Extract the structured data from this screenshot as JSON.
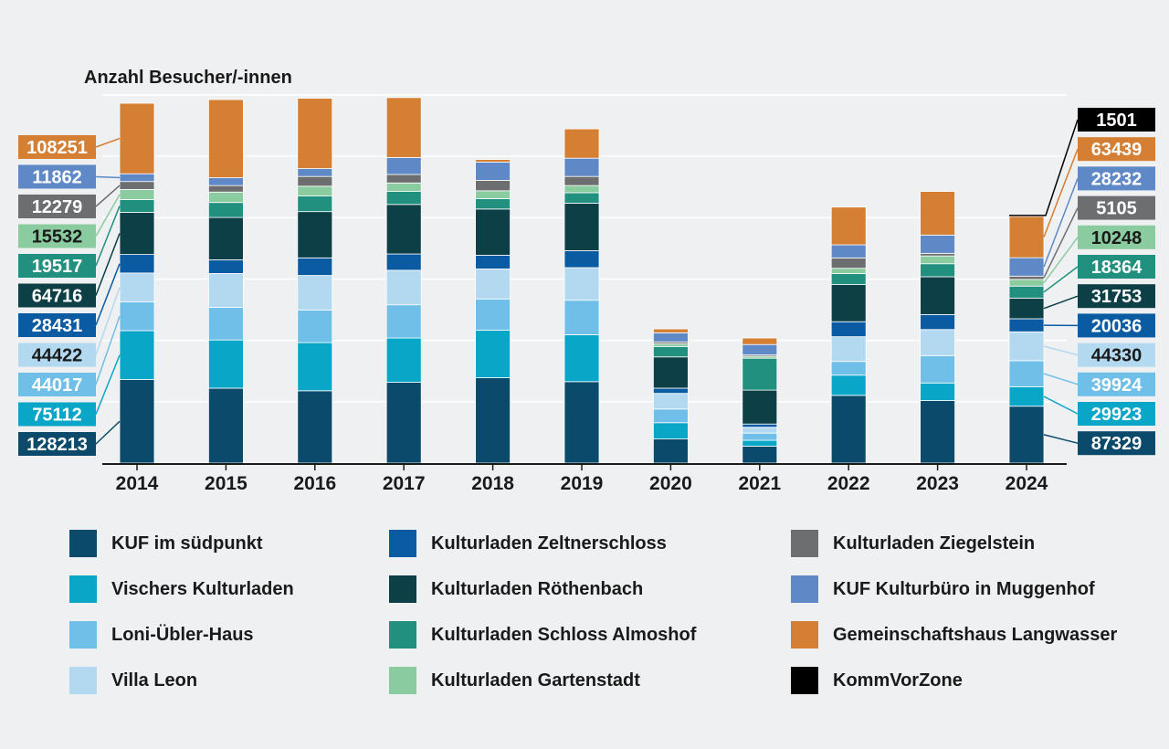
{
  "chart_data": {
    "type": "bar",
    "stacked": true,
    "ylabel": "Anzahl Besucher/-innen",
    "categories": [
      "2014",
      "2015",
      "2016",
      "2017",
      "2018",
      "2019",
      "2020",
      "2021",
      "2022",
      "2023",
      "2024"
    ],
    "grid": true,
    "series": [
      {
        "name": "KUF im südpunkt",
        "color": "#0b4a6b",
        "values": [
          128213,
          115000,
          111000,
          124000,
          131000,
          125000,
          37000,
          26000,
          104000,
          96000,
          87329
        ]
      },
      {
        "name": "Vischers Kulturladen",
        "color": "#0aa6c7",
        "values": [
          75112,
          74000,
          74000,
          68000,
          73000,
          72000,
          25000,
          9000,
          31000,
          27000,
          29923
        ]
      },
      {
        "name": "Loni-Übler-Haus",
        "color": "#6fbfe8",
        "values": [
          44017,
          50000,
          50000,
          51000,
          48000,
          53000,
          21000,
          11000,
          21000,
          42000,
          39924
        ]
      },
      {
        "name": "Villa Leon",
        "color": "#b3d9f1",
        "values": [
          44422,
          52000,
          53000,
          53000,
          46000,
          50000,
          24000,
          9000,
          38000,
          40000,
          44330
        ]
      },
      {
        "name": "Kulturladen Zeltnerschloss",
        "color": "#0b5ba3",
        "values": [
          28431,
          21000,
          27000,
          25000,
          21000,
          26000,
          8000,
          5000,
          23000,
          23000,
          20036
        ]
      },
      {
        "name": "Kulturladen Röthenbach",
        "color": "#0d3f47",
        "values": [
          64716,
          65000,
          71000,
          76000,
          71000,
          73000,
          48000,
          52000,
          57000,
          58000,
          31753
        ]
      },
      {
        "name": "Kulturladen Schloss Almoshof",
        "color": "#22907f",
        "values": [
          19517,
          23000,
          24000,
          20000,
          16000,
          16000,
          16000,
          49000,
          17000,
          20000,
          18364
        ]
      },
      {
        "name": "Kulturladen Gartenstadt",
        "color": "#8acba0",
        "values": [
          15532,
          16000,
          15000,
          13000,
          12000,
          11000,
          4000,
          3000,
          8000,
          12000,
          10248
        ]
      },
      {
        "name": "Kulturladen Ziegelstein",
        "color": "#6d6e70",
        "values": [
          12279,
          10000,
          15000,
          13000,
          16000,
          14000,
          3000,
          2000,
          16000,
          4000,
          5105
        ]
      },
      {
        "name": "KUF Kulturbüro in Muggenhof",
        "color": "#5e88c6",
        "values": [
          11862,
          12000,
          12000,
          26000,
          28000,
          28000,
          14000,
          16000,
          20000,
          28000,
          28232
        ]
      },
      {
        "name": "Gemeinschaftshaus Langwasser",
        "color": "#d47f33",
        "values": [
          108251,
          120000,
          108000,
          92000,
          4000,
          45000,
          6000,
          10000,
          58000,
          67000,
          63439
        ]
      },
      {
        "name": "KommVorZone",
        "color": "#000000",
        "values": [
          0,
          0,
          0,
          0,
          0,
          0,
          0,
          0,
          0,
          0,
          1501
        ]
      }
    ],
    "ylim": [
      0,
      565000
    ],
    "labels_2014": {
      "values": [
        "108251",
        "11862",
        "12279",
        "15532",
        "19517",
        "64716",
        "28431",
        "44422",
        "44017",
        "75112",
        "128213"
      ],
      "series_index": [
        10,
        9,
        8,
        7,
        6,
        5,
        4,
        3,
        2,
        1,
        0
      ]
    },
    "labels_2024": {
      "values": [
        "1501",
        "63439",
        "28232",
        "5105",
        "10248",
        "18364",
        "31753",
        "20036",
        "44330",
        "39924",
        "29923",
        "87329"
      ],
      "series_index": [
        11,
        10,
        9,
        8,
        7,
        6,
        5,
        4,
        3,
        2,
        1,
        0
      ]
    }
  }
}
